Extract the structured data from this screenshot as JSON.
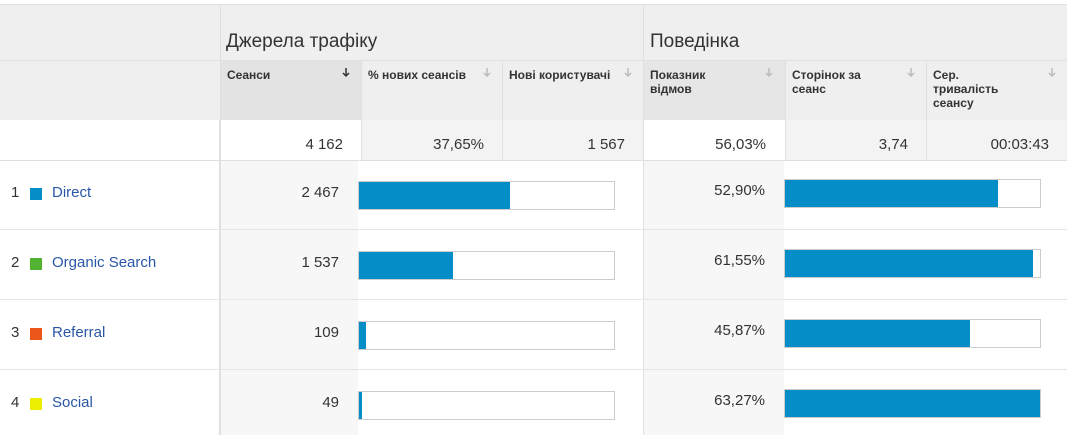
{
  "groups": [
    "Джерела трафіку",
    "Поведінка"
  ],
  "columns": [
    "Сеанси",
    "% нових сеансів",
    "Нові користувачі",
    "Показник відмов",
    "Сторінок за сеанс",
    "Сер. тривалість сеансу"
  ],
  "totals": {
    "sessions": {
      "value": 4162,
      "label": "4 162"
    },
    "new_sessions_pct": "37,65%",
    "new_users": "1 567",
    "bounce_rate": "56,03%",
    "pages_per_session": "3,74",
    "avg_duration": "00:03:43"
  },
  "bar_color": "#058dc7",
  "rows": [
    {
      "rank": 1,
      "name": "Direct",
      "color": "#058dc7",
      "sessions": {
        "value": 2467,
        "label": "2 467"
      },
      "bounce_rate": {
        "value": 52.9,
        "label": "52,90%"
      }
    },
    {
      "rank": 2,
      "name": "Organic Search",
      "color": "#50b432",
      "sessions": {
        "value": 1537,
        "label": "1 537"
      },
      "bounce_rate": {
        "value": 61.55,
        "label": "61,55%"
      }
    },
    {
      "rank": 3,
      "name": "Referral",
      "color": "#ed561b",
      "sessions": {
        "value": 109,
        "label": "109"
      },
      "bounce_rate": {
        "value": 45.87,
        "label": "45,87%"
      }
    },
    {
      "rank": 4,
      "name": "Social",
      "color": "#edef00",
      "sessions": {
        "value": 49,
        "label": "49"
      },
      "bounce_rate": {
        "value": 63.27,
        "label": "63,27%"
      }
    }
  ]
}
